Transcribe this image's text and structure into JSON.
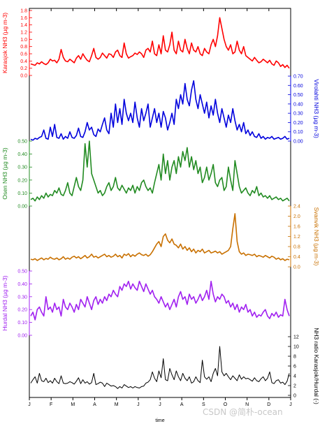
{
  "chart_data": {
    "type": "line",
    "xlabel": "time",
    "x_ticks": [
      "J",
      "F",
      "M",
      "A",
      "M",
      "J",
      "J",
      "A",
      "S",
      "O",
      "N",
      "D",
      "J"
    ],
    "panels": [
      {
        "id": "karasjok",
        "label": "Karasjok NH3 (µg m-3)",
        "axis": "left",
        "color": "#ff0000",
        "ylim": [
          0,
          1.8
        ],
        "yticks": [
          "0.0",
          "0.2",
          "0.4",
          "0.6",
          "0.8",
          "1.0",
          "1.2",
          "1.4",
          "1.6",
          "1.8"
        ],
        "values": [
          0.32,
          0.3,
          0.28,
          0.35,
          0.32,
          0.38,
          0.33,
          0.3,
          0.35,
          0.45,
          0.4,
          0.42,
          0.35,
          0.45,
          0.72,
          0.5,
          0.4,
          0.38,
          0.45,
          0.4,
          0.35,
          0.48,
          0.55,
          0.45,
          0.6,
          0.5,
          0.42,
          0.38,
          0.55,
          0.75,
          0.5,
          0.45,
          0.5,
          0.62,
          0.55,
          0.48,
          0.6,
          0.58,
          0.5,
          0.65,
          0.7,
          0.55,
          0.5,
          0.9,
          0.6,
          0.48,
          0.52,
          0.55,
          0.62,
          0.58,
          0.65,
          0.6,
          0.5,
          0.7,
          0.75,
          0.65,
          0.95,
          0.6,
          0.55,
          0.85,
          0.6,
          1.1,
          0.7,
          0.65,
          0.85,
          1.2,
          0.7,
          0.6,
          0.95,
          0.7,
          0.65,
          1.0,
          0.75,
          0.6,
          0.9,
          0.7,
          0.65,
          0.8,
          0.6,
          0.55,
          0.75,
          0.65,
          0.6,
          0.85,
          1.0,
          0.8,
          1.1,
          1.6,
          1.3,
          1.0,
          0.8,
          0.7,
          0.85,
          0.6,
          0.65,
          0.95,
          0.7,
          0.6,
          0.8,
          0.55,
          0.5,
          0.45,
          0.4,
          0.5,
          0.42,
          0.35,
          0.38,
          0.45,
          0.4,
          0.35,
          0.42,
          0.32,
          0.28,
          0.4,
          0.35,
          0.25,
          0.3,
          0.22,
          0.28,
          0.2
        ]
      },
      {
        "id": "virolahti",
        "label": "Virolahti NH3 (µg m-3)",
        "axis": "right",
        "color": "#0000dd",
        "ylim": [
          0,
          0.7
        ],
        "yticks": [
          "0.00",
          "0.10",
          "0.20",
          "0.30",
          "0.40",
          "0.50",
          "0.60",
          "0.70"
        ],
        "values": [
          0.02,
          0.01,
          0.03,
          0.02,
          0.04,
          0.05,
          0.12,
          0.03,
          0.02,
          0.15,
          0.05,
          0.18,
          0.04,
          0.03,
          0.08,
          0.02,
          0.05,
          0.03,
          0.1,
          0.04,
          0.03,
          0.06,
          0.14,
          0.05,
          0.04,
          0.1,
          0.2,
          0.12,
          0.15,
          0.07,
          0.05,
          0.13,
          0.1,
          0.18,
          0.25,
          0.12,
          0.08,
          0.3,
          0.15,
          0.4,
          0.2,
          0.35,
          0.18,
          0.45,
          0.3,
          0.22,
          0.3,
          0.2,
          0.42,
          0.25,
          0.15,
          0.35,
          0.22,
          0.3,
          0.4,
          0.15,
          0.25,
          0.35,
          0.2,
          0.3,
          0.15,
          0.32,
          0.25,
          0.12,
          0.2,
          0.3,
          0.18,
          0.45,
          0.35,
          0.5,
          0.4,
          0.62,
          0.45,
          0.38,
          0.55,
          0.65,
          0.45,
          0.35,
          0.5,
          0.4,
          0.3,
          0.42,
          0.25,
          0.38,
          0.28,
          0.45,
          0.3,
          0.2,
          0.35,
          0.25,
          0.15,
          0.28,
          0.2,
          0.35,
          0.22,
          0.12,
          0.18,
          0.1,
          0.2,
          0.08,
          0.12,
          0.06,
          0.1,
          0.05,
          0.04,
          0.08,
          0.03,
          0.05,
          0.02,
          0.04,
          0.03,
          0.05,
          0.02,
          0.03,
          0.04,
          0.02,
          0.03,
          0.05,
          0.02,
          0.03
        ]
      },
      {
        "id": "osen",
        "label": "Osen NH3 (µg m-3)",
        "axis": "left",
        "color": "#228b22",
        "ylim": [
          0,
          0.5
        ],
        "yticks": [
          "0.00",
          "0.10",
          "0.20",
          "0.30",
          "0.40",
          "0.50"
        ],
        "values": [
          0.05,
          0.06,
          0.04,
          0.07,
          0.05,
          0.08,
          0.06,
          0.1,
          0.07,
          0.09,
          0.08,
          0.12,
          0.1,
          0.14,
          0.09,
          0.08,
          0.12,
          0.18,
          0.1,
          0.08,
          0.15,
          0.22,
          0.15,
          0.12,
          0.2,
          0.48,
          0.3,
          0.5,
          0.25,
          0.2,
          0.15,
          0.1,
          0.12,
          0.08,
          0.1,
          0.15,
          0.18,
          0.12,
          0.15,
          0.22,
          0.14,
          0.12,
          0.16,
          0.13,
          0.1,
          0.14,
          0.12,
          0.16,
          0.1,
          0.15,
          0.12,
          0.18,
          0.2,
          0.15,
          0.12,
          0.14,
          0.1,
          0.18,
          0.25,
          0.32,
          0.2,
          0.4,
          0.25,
          0.35,
          0.2,
          0.3,
          0.35,
          0.25,
          0.38,
          0.3,
          0.42,
          0.35,
          0.45,
          0.3,
          0.38,
          0.28,
          0.35,
          0.25,
          0.3,
          0.18,
          0.22,
          0.3,
          0.2,
          0.25,
          0.32,
          0.18,
          0.15,
          0.2,
          0.22,
          0.12,
          0.15,
          0.3,
          0.2,
          0.12,
          0.35,
          0.25,
          0.15,
          0.1,
          0.12,
          0.14,
          0.1,
          0.08,
          0.12,
          0.1,
          0.15,
          0.08,
          0.1,
          0.07,
          0.08,
          0.06,
          0.08,
          0.05,
          0.06,
          0.07,
          0.05,
          0.06,
          0.04,
          0.05,
          0.06,
          0.04
        ]
      },
      {
        "id": "svanvik",
        "label": "Svanvik NH3 (µg m-3)",
        "axis": "right",
        "color": "#c87000",
        "ylim": [
          0,
          2.4
        ],
        "yticks": [
          "0.0",
          "0.4",
          "0.8",
          "1.2",
          "1.6",
          "2.0",
          "2.4"
        ],
        "values": [
          0.3,
          0.28,
          0.32,
          0.25,
          0.3,
          0.35,
          0.28,
          0.33,
          0.3,
          0.38,
          0.32,
          0.3,
          0.35,
          0.28,
          0.32,
          0.4,
          0.3,
          0.35,
          0.3,
          0.38,
          0.42,
          0.35,
          0.4,
          0.32,
          0.38,
          0.45,
          0.35,
          0.4,
          0.5,
          0.38,
          0.42,
          0.35,
          0.4,
          0.45,
          0.5,
          0.4,
          0.45,
          0.38,
          0.42,
          0.5,
          0.4,
          0.45,
          0.35,
          0.5,
          0.45,
          0.52,
          0.4,
          0.48,
          0.42,
          0.5,
          0.55,
          0.48,
          0.45,
          0.5,
          0.42,
          0.48,
          0.6,
          0.75,
          0.9,
          1.0,
          0.8,
          1.2,
          1.3,
          1.05,
          0.95,
          1.1,
          0.9,
          0.85,
          0.75,
          0.9,
          0.7,
          0.8,
          0.65,
          0.75,
          0.6,
          0.7,
          0.55,
          0.65,
          0.6,
          0.7,
          0.55,
          0.6,
          0.65,
          0.55,
          0.58,
          0.62,
          0.55,
          0.6,
          0.5,
          0.55,
          0.6,
          0.65,
          0.8,
          1.5,
          2.1,
          1.0,
          0.6,
          0.5,
          0.55,
          0.45,
          0.5,
          0.48,
          0.45,
          0.5,
          0.4,
          0.45,
          0.42,
          0.38,
          0.45,
          0.4,
          0.35,
          0.42,
          0.38,
          0.3,
          0.35,
          0.28,
          0.32,
          0.25,
          0.3,
          0.28
        ]
      },
      {
        "id": "hurdal",
        "label": "Hurdal NH3 (µg m-3)",
        "axis": "left",
        "color": "#a020f0",
        "ylim": [
          0,
          0.5
        ],
        "yticks": [
          "0.00",
          "0.10",
          "0.20",
          "0.30",
          "0.40",
          "0.50"
        ],
        "values": [
          0.15,
          0.18,
          0.12,
          0.2,
          0.22,
          0.18,
          0.15,
          0.3,
          0.2,
          0.22,
          0.18,
          0.25,
          0.2,
          0.22,
          0.15,
          0.28,
          0.22,
          0.2,
          0.25,
          0.22,
          0.18,
          0.24,
          0.2,
          0.28,
          0.25,
          0.22,
          0.3,
          0.25,
          0.2,
          0.27,
          0.3,
          0.24,
          0.28,
          0.25,
          0.3,
          0.27,
          0.32,
          0.3,
          0.35,
          0.32,
          0.3,
          0.38,
          0.35,
          0.4,
          0.38,
          0.42,
          0.36,
          0.4,
          0.37,
          0.35,
          0.42,
          0.38,
          0.34,
          0.4,
          0.36,
          0.32,
          0.35,
          0.3,
          0.28,
          0.25,
          0.3,
          0.26,
          0.22,
          0.25,
          0.2,
          0.24,
          0.28,
          0.22,
          0.3,
          0.34,
          0.28,
          0.3,
          0.24,
          0.32,
          0.28,
          0.3,
          0.25,
          0.28,
          0.32,
          0.27,
          0.3,
          0.35,
          0.28,
          0.42,
          0.32,
          0.26,
          0.3,
          0.28,
          0.32,
          0.3,
          0.25,
          0.27,
          0.22,
          0.25,
          0.2,
          0.24,
          0.18,
          0.22,
          0.2,
          0.24,
          0.18,
          0.2,
          0.15,
          0.18,
          0.14,
          0.16,
          0.15,
          0.18,
          0.2,
          0.15,
          0.13,
          0.17,
          0.15,
          0.18,
          0.14,
          0.16,
          0.15,
          0.28,
          0.2,
          0.15
        ]
      },
      {
        "id": "ratio",
        "label": "NH3 ratio Karasjok/Hurdal (-)",
        "axis": "right",
        "color": "#000000",
        "ylim": [
          0,
          12
        ],
        "yticks": [
          "0",
          "2",
          "4",
          "6",
          "8",
          "10",
          "12"
        ],
        "values": [
          2.5,
          3.2,
          3.8,
          2.5,
          4.5,
          3.0,
          2.8,
          3.5,
          2.6,
          3.0,
          2.5,
          3.5,
          2.8,
          2.4,
          4.0,
          2.5,
          2.4,
          2.5,
          2.8,
          2.6,
          2.3,
          2.9,
          3.6,
          2.4,
          3.2,
          2.5,
          2.8,
          2.3,
          2.6,
          4.5,
          2.2,
          2.4,
          2.7,
          2.5,
          1.8,
          2.5,
          2.2,
          1.9,
          2.0,
          1.8,
          1.4,
          1.8,
          1.5,
          2.2,
          1.9,
          1.6,
          1.8,
          1.5,
          1.8,
          1.6,
          1.5,
          1.8,
          1.9,
          2.5,
          2.7,
          3.2,
          4.8,
          3.5,
          2.8,
          5.0,
          3.6,
          7.5,
          3.2,
          3.0,
          5.5,
          4.2,
          3.2,
          5.0,
          3.8,
          3.0,
          4.5,
          3.5,
          3.0,
          3.8,
          2.5,
          2.8,
          3.8,
          3.0,
          2.6,
          7.2,
          3.8,
          3.3,
          3.8,
          2.8,
          4.5,
          5.5,
          4.0,
          10.0,
          4.8,
          4.0,
          4.5,
          3.8,
          3.2,
          4.0,
          3.5,
          3.0,
          4.2,
          3.3,
          3.8,
          3.4,
          3.5,
          3.2,
          2.9,
          3.6,
          3.0,
          2.8,
          3.4,
          3.8,
          3.0,
          3.5,
          4.8,
          2.6,
          2.4,
          3.0,
          3.2,
          2.5,
          2.7,
          2.2,
          2.9,
          4.5
        ]
      }
    ]
  },
  "watermark": "CSDN @简朴-ocean"
}
